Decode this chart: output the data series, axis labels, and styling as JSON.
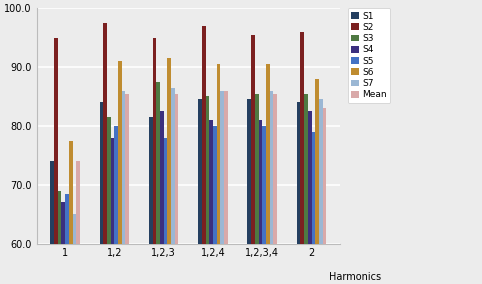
{
  "categories": [
    "1",
    "1,2",
    "1,2,3",
    "1,2,4",
    "1,2,3,4",
    "2"
  ],
  "series": {
    "S1": [
      74.0,
      84.0,
      81.5,
      84.5,
      84.5,
      84.0
    ],
    "S2": [
      95.0,
      97.5,
      95.0,
      97.0,
      95.5,
      96.0
    ],
    "S3": [
      69.0,
      81.5,
      87.5,
      85.0,
      85.5,
      85.5
    ],
    "S4": [
      67.0,
      78.0,
      82.5,
      81.0,
      81.0,
      82.5
    ],
    "S5": [
      68.5,
      80.0,
      78.0,
      80.0,
      80.0,
      79.0
    ],
    "S6": [
      77.5,
      91.0,
      91.5,
      90.5,
      90.5,
      88.0
    ],
    "S7": [
      65.0,
      86.0,
      86.5,
      86.0,
      86.0,
      84.5
    ],
    "Mean": [
      74.0,
      85.5,
      85.5,
      86.0,
      85.5,
      83.0
    ]
  },
  "colors": {
    "S1": "#243F60",
    "S2": "#7B2020",
    "S3": "#4F7942",
    "S4": "#3B2F7F",
    "S5": "#4472C4",
    "S6": "#BF8C30",
    "S7": "#9BB7D4",
    "Mean": "#D9A9A9"
  },
  "ylim": [
    60.0,
    100.0
  ],
  "ytick_labels": [
    "60.0",
    "70.0",
    "80.0",
    "90.0",
    "100.0"
  ],
  "ytick_vals": [
    60.0,
    70.0,
    80.0,
    90.0,
    100.0
  ],
  "xlabel": "Harmonics",
  "background_color": "#ECECEC",
  "grid_color": "#FFFFFF"
}
